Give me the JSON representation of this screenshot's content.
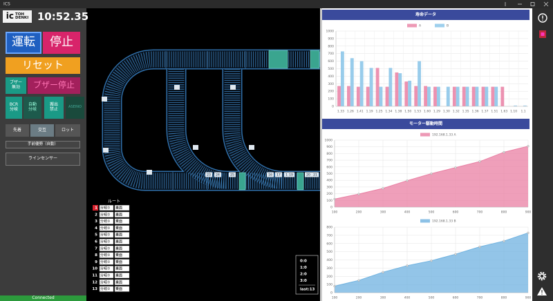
{
  "header": {
    "app": "ICS",
    "logo_mark": "ic",
    "logo_top": "TOH",
    "logo_bottom": "DENKI",
    "clock": "10:52.35"
  },
  "controls": {
    "run": "運転",
    "stop": "停止",
    "reset": "リセット",
    "buzzer_off": [
      "ブザー",
      "無効"
    ],
    "buzzer_stop": "ブザー停止",
    "bcr": [
      "BCR",
      "分岐"
    ],
    "auto": [
      "自動",
      "分岐"
    ],
    "carry": [
      "搬出",
      "禁止"
    ],
    "aseino": "ASEINO",
    "modes": [
      "先着",
      "交互",
      "ロット"
    ],
    "priority": "手前優勢（自動）",
    "line_sensor": "ラインセンサー"
  },
  "status": "Connected",
  "diagram": {
    "labels": [
      "23",
      "24",
      "25",
      "16",
      "17",
      "18",
      "19",
      "20",
      "21"
    ]
  },
  "routes": {
    "header": "ルート",
    "rows": [
      {
        "no": "1",
        "branch": "分岐①",
        "face": "乗面"
      },
      {
        "no": "2",
        "branch": "分岐①",
        "face": "乗面"
      },
      {
        "no": "3",
        "branch": "分岐①",
        "face": "乗面"
      },
      {
        "no": "4",
        "branch": "分岐①",
        "face": "乗面"
      },
      {
        "no": "5",
        "branch": "分岐①",
        "face": "乗面"
      },
      {
        "no": "6",
        "branch": "分岐①",
        "face": "乗面"
      },
      {
        "no": "7",
        "branch": "分岐①",
        "face": "乗面"
      },
      {
        "no": "8",
        "branch": "分岐①",
        "face": "乗面"
      },
      {
        "no": "9",
        "branch": "分岐①",
        "face": "乗面"
      },
      {
        "no": "10",
        "branch": "分岐①",
        "face": "乗面"
      },
      {
        "no": "11",
        "branch": "分岐①",
        "face": "乗面"
      },
      {
        "no": "12",
        "branch": "分岐①",
        "face": "乗面"
      },
      {
        "no": "13",
        "branch": "分岐①",
        "face": "乗面"
      }
    ]
  },
  "counters": [
    "0:0",
    "1:0",
    "2:0",
    "3:0",
    "last:13"
  ],
  "chart_data": [
    {
      "type": "bar",
      "title": "寿命データ",
      "categories": [
        "1.33",
        "1.26",
        "1.41",
        "1.19",
        "1.25",
        "1.34",
        "1.38",
        "1.50",
        "1.53",
        "1.60",
        "1.29",
        "1.30",
        "1.32",
        "1.35",
        "1.36",
        "1.37",
        "1.51",
        "1.63",
        "1.10",
        "1.1"
      ],
      "series": [
        {
          "name": "A",
          "color": "#e97fa3",
          "values": [
            270,
            270,
            260,
            260,
            510,
            260,
            450,
            330,
            270,
            270,
            260,
            0,
            260,
            260,
            260,
            260,
            260,
            260,
            0,
            0
          ]
        },
        {
          "name": "B",
          "color": "#86c3e8",
          "values": [
            730,
            640,
            600,
            510,
            260,
            510,
            440,
            340,
            600,
            260,
            260,
            260,
            260,
            260,
            260,
            260,
            260,
            0,
            10,
            10
          ]
        }
      ],
      "ylim": [
        0,
        1000
      ],
      "yticks": [
        0,
        100,
        200,
        300,
        400,
        500,
        600,
        700,
        800,
        900,
        1000
      ],
      "grid": true
    },
    {
      "type": "line",
      "title": "モーター駆動時間",
      "x": [
        100,
        200,
        300,
        400,
        500,
        600,
        700,
        800,
        900
      ],
      "series": [
        {
          "name": "192.168.1.33 A",
          "color": "#e97fa3",
          "values": [
            120,
            195,
            280,
            395,
            500,
            590,
            680,
            820,
            910
          ]
        }
      ],
      "xlim": [
        100,
        900
      ],
      "xticks": [
        100,
        200,
        300,
        400,
        500,
        600,
        700,
        800,
        900
      ],
      "ylim": [
        0,
        1000
      ],
      "yticks": [
        0,
        100,
        200,
        300,
        400,
        500,
        600,
        700,
        800,
        900,
        1000
      ],
      "grid": true
    },
    {
      "type": "line",
      "x": [
        100,
        200,
        300,
        400,
        500,
        600,
        700,
        800,
        900
      ],
      "series": [
        {
          "name": "192.168.1.33 B",
          "color": "#6fb2e0",
          "values": [
            80,
            150,
            250,
            330,
            390,
            470,
            560,
            630,
            730
          ]
        }
      ],
      "xlim": [
        100,
        900
      ],
      "xticks": [
        100,
        200,
        300,
        400,
        500,
        600,
        700,
        800,
        900
      ],
      "ylim": [
        0,
        800
      ],
      "yticks": [
        0,
        100,
        200,
        300,
        400,
        500,
        600,
        700,
        800
      ],
      "grid": true
    }
  ]
}
